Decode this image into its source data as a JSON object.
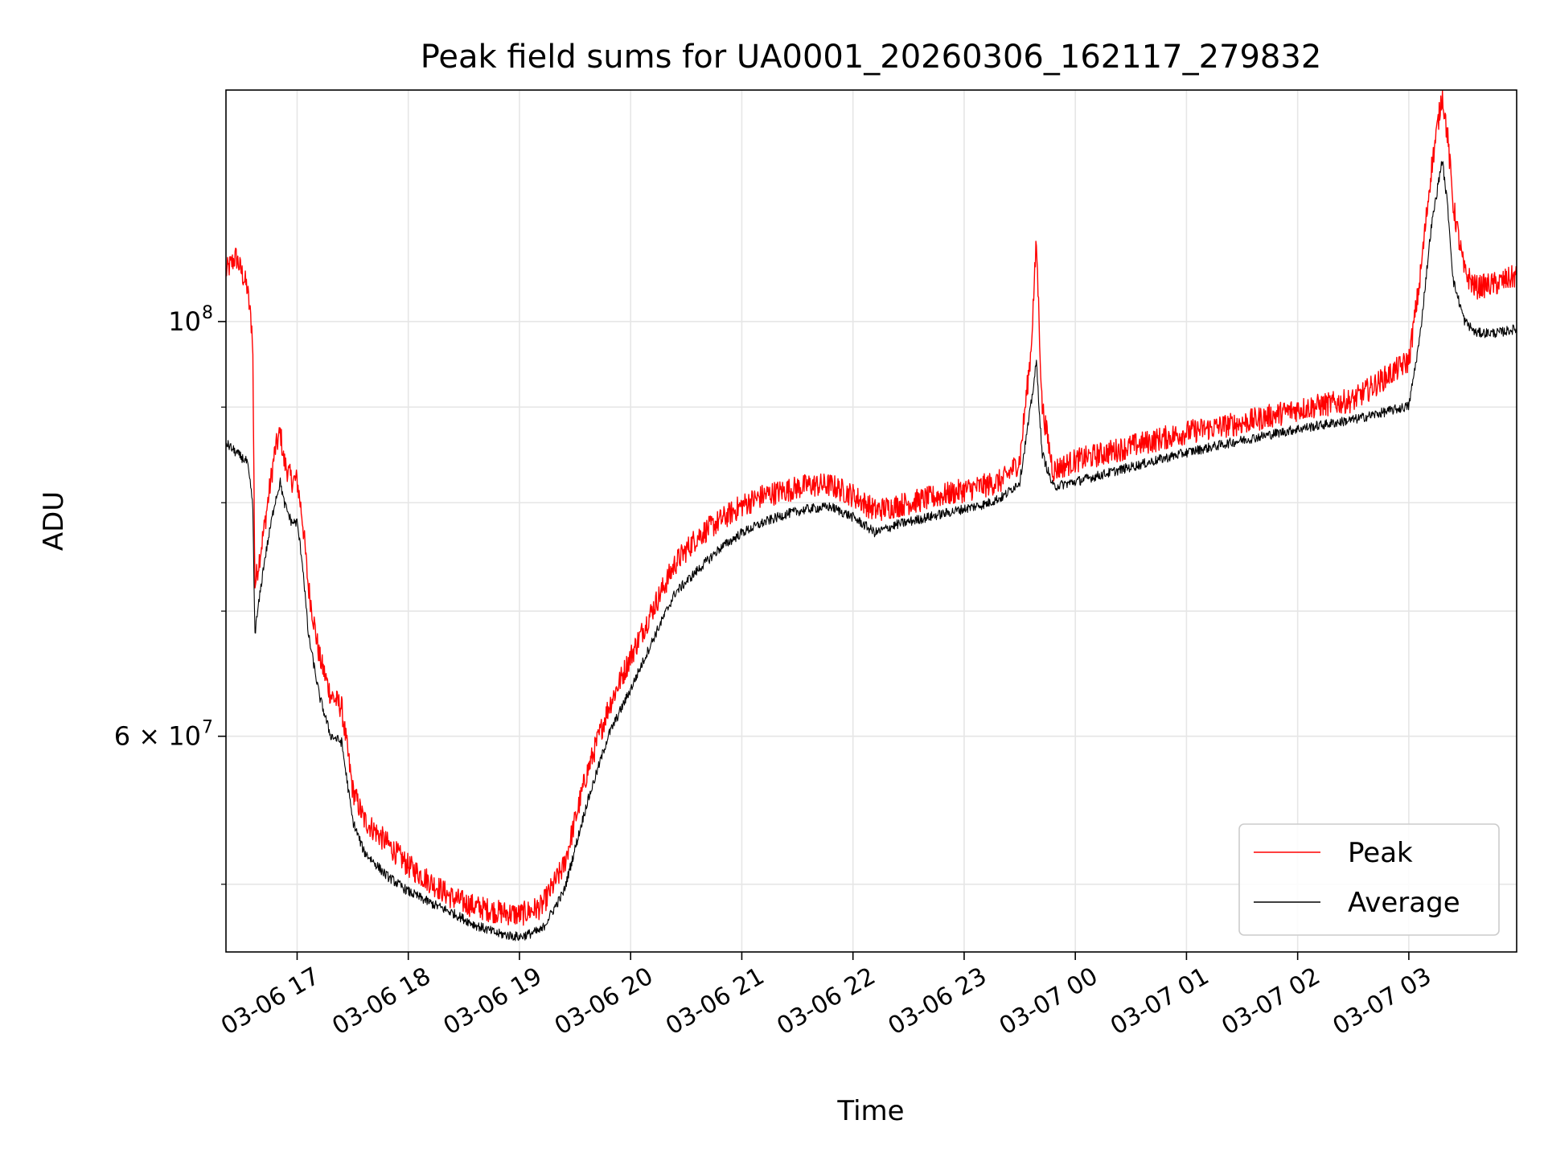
{
  "chart_data": {
    "type": "line",
    "title": "Peak field sums for UA0001_20260306_162117_279832",
    "xlabel": "Time",
    "ylabel": "ADU",
    "yscale": "log",
    "ylim": [
      46000000,
      133000000
    ],
    "x_unit": "hours since 03-06 00:00",
    "xlim": [
      16.36,
      27.97
    ],
    "grid": true,
    "legend_position": "lower-right",
    "x_ticks": [
      {
        "value": 17,
        "label": "03-06 17"
      },
      {
        "value": 18,
        "label": "03-06 18"
      },
      {
        "value": 19,
        "label": "03-06 19"
      },
      {
        "value": 20,
        "label": "03-06 20"
      },
      {
        "value": 21,
        "label": "03-06 21"
      },
      {
        "value": 22,
        "label": "03-06 22"
      },
      {
        "value": 23,
        "label": "03-06 23"
      },
      {
        "value": 24,
        "label": "03-07 00"
      },
      {
        "value": 25,
        "label": "03-07 01"
      },
      {
        "value": 26,
        "label": "03-07 02"
      },
      {
        "value": 27,
        "label": "03-07 03"
      }
    ],
    "y_major_ticks": [
      {
        "value": 60000000,
        "base": "6 × 10",
        "exp": "7"
      },
      {
        "value": 100000000,
        "base": "10",
        "exp": "8"
      }
    ],
    "y_minor_grid": [
      50000000,
      70000000,
      80000000,
      90000000
    ],
    "series": [
      {
        "name": "Peak",
        "color": "#ff0000",
        "noise_fraction": 0.03,
        "x": [
          16.36,
          16.45,
          16.55,
          16.6,
          16.62,
          16.7,
          16.8,
          16.85,
          16.88,
          16.95,
          17.0,
          17.05,
          17.1,
          17.2,
          17.3,
          17.4,
          17.5,
          17.6,
          17.8,
          18.0,
          18.2,
          18.4,
          18.6,
          18.8,
          19.0,
          19.2,
          19.4,
          19.6,
          19.8,
          20.0,
          20.2,
          20.4,
          20.6,
          20.8,
          21.0,
          21.2,
          21.4,
          21.6,
          21.8,
          22.0,
          22.2,
          22.4,
          22.6,
          22.8,
          23.0,
          23.2,
          23.35,
          23.5,
          23.6,
          23.65,
          23.7,
          23.8,
          24.0,
          24.5,
          25.0,
          25.5,
          26.0,
          26.5,
          27.0,
          27.1,
          27.2,
          27.3,
          27.35,
          27.4,
          27.5,
          27.6,
          27.8,
          27.97
        ],
        "y": [
          106000000,
          108000000,
          104000000,
          98000000,
          72000000,
          77000000,
          85000000,
          87000000,
          84000000,
          82000000,
          82000000,
          78000000,
          72000000,
          66000000,
          63000000,
          62000000,
          56000000,
          54000000,
          52500000,
          51000000,
          50000000,
          49000000,
          48500000,
          48200000,
          48000000,
          48500000,
          51000000,
          57000000,
          62000000,
          66000000,
          70000000,
          74000000,
          76500000,
          78000000,
          79500000,
          80500000,
          81000000,
          81500000,
          81500000,
          80500000,
          79000000,
          79500000,
          80000000,
          80500000,
          81000000,
          81500000,
          82000000,
          84000000,
          96000000,
          110000000,
          90000000,
          83000000,
          84000000,
          85500000,
          87000000,
          88000000,
          89500000,
          90500000,
          95000000,
          105000000,
          120000000,
          132000000,
          125000000,
          115000000,
          106000000,
          104000000,
          104500000,
          105500000
        ]
      },
      {
        "name": "Average",
        "color": "#000000",
        "noise_fraction": 0.012,
        "x": [
          16.36,
          16.45,
          16.55,
          16.6,
          16.62,
          16.7,
          16.8,
          16.85,
          16.88,
          16.95,
          17.0,
          17.05,
          17.1,
          17.2,
          17.3,
          17.4,
          17.5,
          17.6,
          17.8,
          18.0,
          18.2,
          18.4,
          18.6,
          18.8,
          19.0,
          19.2,
          19.4,
          19.6,
          19.8,
          20.0,
          20.2,
          20.4,
          20.6,
          20.8,
          21.0,
          21.2,
          21.4,
          21.6,
          21.8,
          22.0,
          22.2,
          22.4,
          22.6,
          22.8,
          23.0,
          23.2,
          23.35,
          23.5,
          23.6,
          23.65,
          23.7,
          23.8,
          24.0,
          24.5,
          25.0,
          25.5,
          26.0,
          26.5,
          27.0,
          27.1,
          27.2,
          27.3,
          27.35,
          27.4,
          27.5,
          27.6,
          27.8,
          27.97
        ],
        "y": [
          86000000,
          85000000,
          84000000,
          80000000,
          68000000,
          74000000,
          80000000,
          82000000,
          80000000,
          78000000,
          78000000,
          74000000,
          68000000,
          63000000,
          60000000,
          59500000,
          54000000,
          52000000,
          50500000,
          49500000,
          48800000,
          48200000,
          47500000,
          47000000,
          46800000,
          47200000,
          49500000,
          55000000,
          60000000,
          63500000,
          67500000,
          71500000,
          73500000,
          75500000,
          77000000,
          78000000,
          78800000,
          79300000,
          79500000,
          78500000,
          77000000,
          77800000,
          78300000,
          78800000,
          79300000,
          79800000,
          80500000,
          82000000,
          90000000,
          95000000,
          85000000,
          81500000,
          82000000,
          83500000,
          85000000,
          86300000,
          87500000,
          88500000,
          90000000,
          98000000,
          112000000,
          122000000,
          115000000,
          105000000,
          100000000,
          98500000,
          98500000,
          99000000
        ]
      }
    ]
  }
}
